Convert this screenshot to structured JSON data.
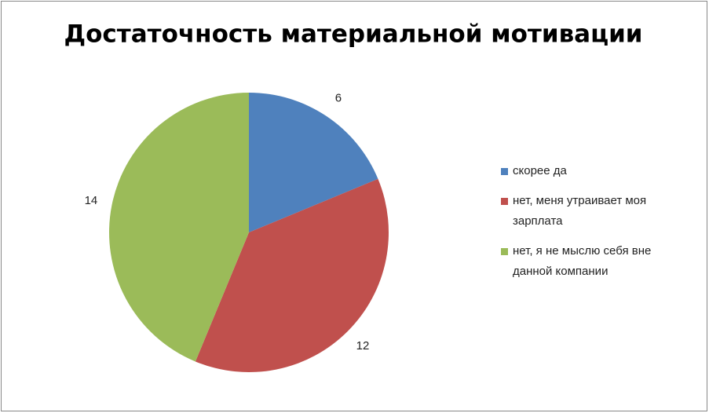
{
  "chart_data": {
    "type": "pie",
    "title": "Достаточность материальной мотивации",
    "categories": [
      "скорее да",
      "нет, меня  утраивает моя зарплата",
      "нет, я не мыслю себя вне данной компании"
    ],
    "values": [
      6,
      12,
      14
    ],
    "colors": [
      "#4f81bd",
      "#c0504d",
      "#9bbb59"
    ],
    "legend": "right"
  }
}
